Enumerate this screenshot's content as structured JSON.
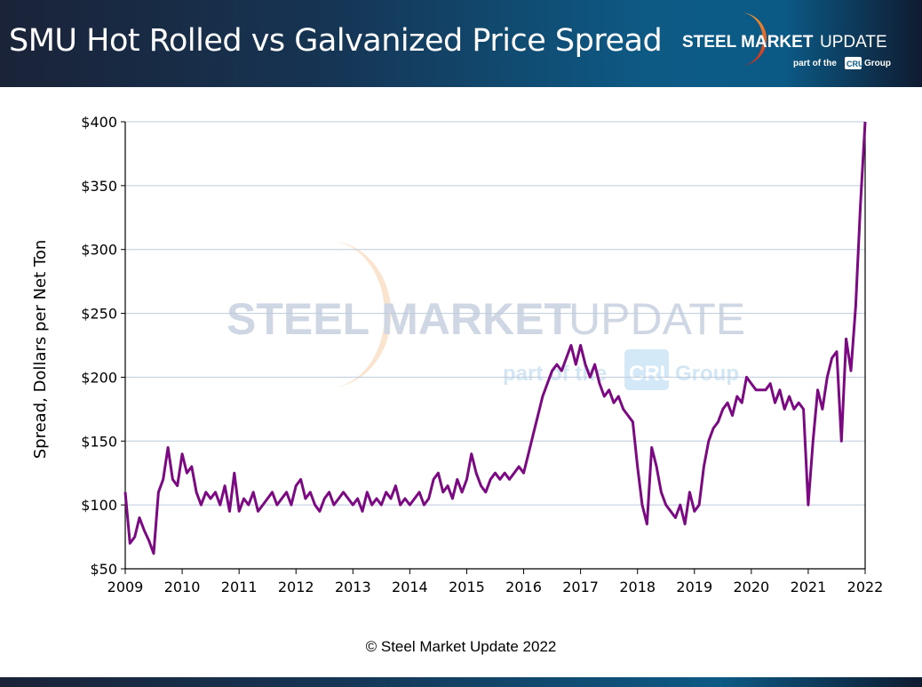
{
  "header": {
    "title": "SMU Hot Rolled vs Galvanized Price Spread"
  },
  "logo": {
    "brand_bold": "STEEL MARKET",
    "brand_light": "UPDATE",
    "tagline_pre": "part of the",
    "tagline_box": "CRU",
    "tagline_post": "Group"
  },
  "footer": {
    "copyright": "© Steel Market Update 2022"
  },
  "colors": {
    "line": "#7b0a82",
    "grid": "#bccbdc",
    "header_dark": "#1a2338",
    "header_blue": "#0d5a85",
    "logo_orange": "#f08a2a",
    "logo_red": "#d2352a"
  },
  "chart_data": {
    "type": "line",
    "title": "SMU Hot Rolled vs Galvanized Price Spread",
    "xlabel": "",
    "ylabel": "Spread, Dollars per Net Ton",
    "xlim": [
      2009,
      2022
    ],
    "ylim": [
      50,
      400
    ],
    "x_ticks": [
      "2009",
      "2010",
      "2011",
      "2012",
      "2013",
      "2014",
      "2015",
      "2016",
      "2017",
      "2018",
      "2019",
      "2020",
      "2021",
      "2022"
    ],
    "y_ticks": [
      "$50",
      "$100",
      "$150",
      "$200",
      "$250",
      "$300",
      "$350",
      "$400"
    ],
    "y_tick_values": [
      50,
      100,
      150,
      200,
      250,
      300,
      350,
      400
    ],
    "grid": "horizontal",
    "series": [
      {
        "start": "2009-01",
        "frequency": "monthly",
        "values": [
          110,
          70,
          75,
          90,
          80,
          72,
          62,
          110,
          120,
          145,
          120,
          115,
          140,
          125,
          130,
          110,
          100,
          110,
          105,
          110,
          100,
          115,
          95,
          125,
          95,
          105,
          100,
          110,
          95,
          100,
          105,
          110,
          100,
          105,
          110,
          100,
          115,
          120,
          105,
          110,
          100,
          95,
          105,
          110,
          100,
          105,
          110,
          105,
          100,
          105,
          95,
          110,
          100,
          105,
          100,
          110,
          105,
          115,
          100,
          105,
          100,
          105,
          110,
          100,
          105,
          120,
          125,
          110,
          115,
          105,
          120,
          110,
          120,
          140,
          125,
          115,
          110,
          120,
          125,
          120,
          125,
          120,
          125,
          130,
          125,
          140,
          155,
          170,
          185,
          195,
          205,
          210,
          205,
          215,
          225,
          210,
          225,
          210,
          200,
          210,
          195,
          185,
          190,
          180,
          185,
          175,
          170,
          165,
          130,
          100,
          85,
          145,
          130,
          110,
          100,
          95,
          90,
          100,
          85,
          110,
          95,
          100,
          130,
          150,
          160,
          165,
          175,
          180,
          170,
          185,
          180,
          200,
          195,
          190,
          190,
          190,
          195,
          180,
          190,
          175,
          185,
          175,
          180,
          175,
          100,
          150,
          190,
          175,
          200,
          215,
          220,
          150,
          230,
          205,
          255,
          335,
          400
        ]
      }
    ]
  }
}
